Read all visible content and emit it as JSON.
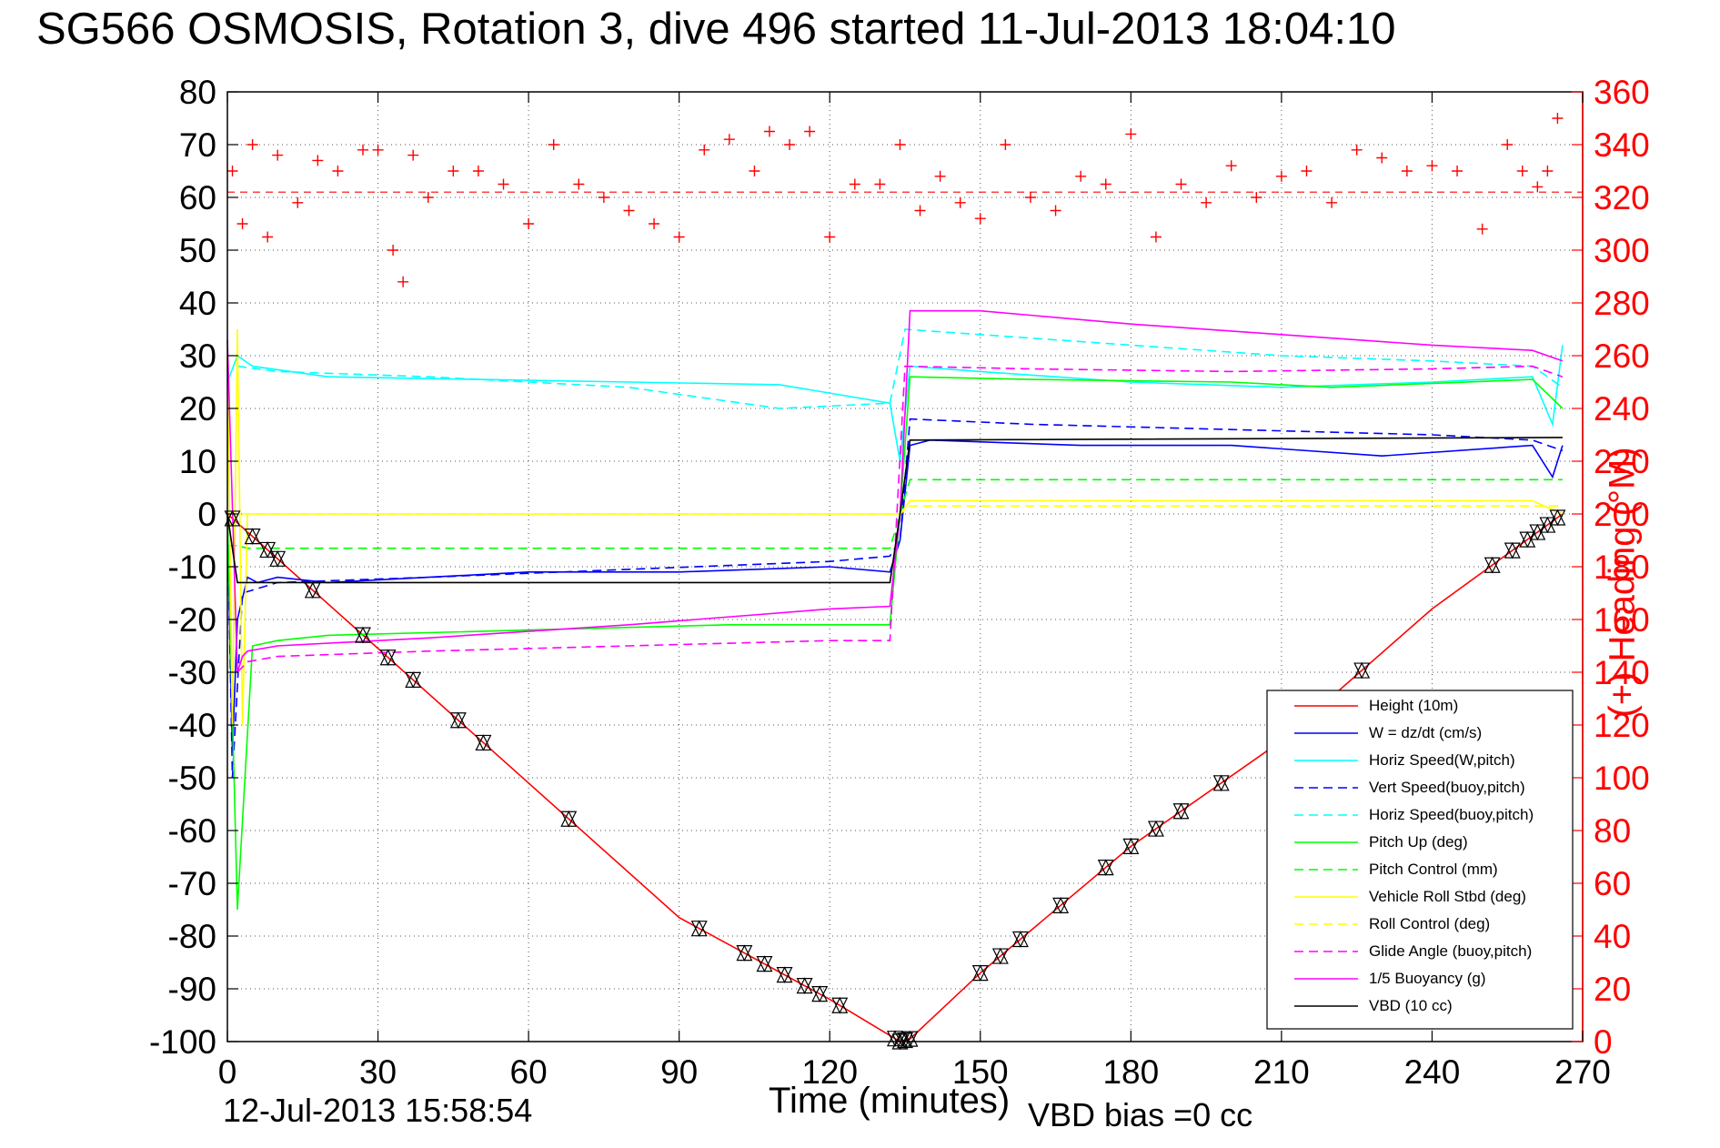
{
  "title": "SG566 OSMOSIS, Rotation 3, dive 496 started 11-Jul-2013 18:04:10",
  "footer": {
    "date": "12-Jul-2013 15:58:54",
    "vbd_bias": "VBD bias =0 cc"
  },
  "colors": {
    "height": "#ff0000",
    "w": "#0000ff",
    "horiz_w": "#00ffff",
    "vert_buoy": "#0000ff",
    "horiz_buoy": "#00ffff",
    "pitch": "#00ff00",
    "pitch_ctrl": "#00ff00",
    "roll": "#ffff00",
    "roll_ctrl": "#ffff00",
    "glide": "#ff00ff",
    "buoyancy": "#ff00ff",
    "vbd": "#000000",
    "heading": "#ff0000"
  },
  "chart_data": {
    "type": "line",
    "title": "SG566 OSMOSIS, Rotation 3, dive 496 started 11-Jul-2013 18:04:10",
    "xlabel": "Time (minutes)",
    "ylabel_right": "(+) Heading (°M)",
    "xlim": [
      0,
      270
    ],
    "ylim_left": [
      -100,
      80
    ],
    "ylim_right": [
      0,
      360
    ],
    "x_ticks": [
      0,
      30,
      60,
      90,
      120,
      150,
      180,
      210,
      240,
      270
    ],
    "y_ticks_left": [
      80,
      70,
      60,
      50,
      40,
      30,
      20,
      10,
      0,
      -10,
      -20,
      -30,
      -40,
      -50,
      -60,
      -70,
      -80,
      -90,
      -100
    ],
    "y_ticks_right": [
      360,
      340,
      320,
      300,
      280,
      260,
      240,
      220,
      200,
      180,
      160,
      140,
      120,
      100,
      80,
      60,
      40,
      20,
      0
    ],
    "grid": true,
    "legend_position": "bottom-right",
    "series": [
      {
        "name": "Height (10m)",
        "color_key": "height",
        "style": "solid",
        "x": [
          0,
          30,
          60,
          90,
          120,
          134,
          136,
          150,
          180,
          210,
          240,
          266
        ],
        "y": [
          0,
          -25.5,
          -51,
          -76.5,
          -92,
          -100,
          -99.5,
          -87,
          -63,
          -43,
          -18,
          0
        ]
      },
      {
        "name": "W = dz/dt (cm/s)",
        "color_key": "w",
        "style": "solid",
        "x": [
          0,
          1,
          2,
          4,
          6,
          10,
          20,
          40,
          60,
          90,
          120,
          132,
          134,
          136,
          140,
          170,
          200,
          230,
          260,
          264,
          266
        ],
        "y": [
          0,
          -45,
          -20,
          -12,
          -13,
          -12,
          -13,
          -12,
          -11,
          -11,
          -10,
          -11,
          -5,
          13,
          14,
          13,
          13,
          11,
          13,
          7,
          13
        ]
      },
      {
        "name": "Horiz Speed(W,pitch)",
        "color_key": "horiz_w",
        "style": "solid",
        "x": [
          0,
          2,
          5,
          20,
          50,
          80,
          110,
          132,
          134,
          136,
          150,
          180,
          210,
          240,
          260,
          264,
          266
        ],
        "y": [
          25,
          30,
          28,
          26,
          25.5,
          25,
          24.5,
          21,
          10,
          28,
          27,
          25,
          24,
          25,
          26,
          17,
          32
        ]
      },
      {
        "name": "Vert Speed(buoy,pitch)",
        "color_key": "vert_buoy",
        "style": "dashed",
        "x": [
          0,
          1,
          3,
          10,
          40,
          80,
          120,
          132,
          134,
          136,
          160,
          200,
          240,
          260,
          266
        ],
        "y": [
          0,
          -50,
          -15,
          -13,
          -12,
          -10.5,
          -9,
          -8,
          -5,
          18,
          17,
          16,
          15,
          14,
          12
        ]
      },
      {
        "name": "Horiz Speed(buoy,pitch)",
        "color_key": "horiz_buoy",
        "style": "dashed",
        "x": [
          2,
          10,
          40,
          80,
          110,
          132,
          135,
          150,
          180,
          210,
          240,
          260,
          266
        ],
        "y": [
          28,
          27,
          26,
          24,
          20,
          21,
          35,
          34,
          32,
          30,
          29,
          28,
          24
        ]
      },
      {
        "name": "Pitch Up (deg)",
        "color_key": "pitch",
        "style": "solid",
        "x": [
          0,
          2,
          5,
          10,
          20,
          60,
          100,
          132,
          134,
          136,
          160,
          200,
          220,
          260,
          266
        ],
        "y": [
          0,
          -75,
          -25,
          -24,
          -23,
          -22,
          -21,
          -21,
          0,
          26,
          25.5,
          25,
          24,
          25.5,
          20
        ]
      },
      {
        "name": "Pitch Control (mm)",
        "color_key": "pitch_ctrl",
        "style": "dashed",
        "x": [
          0,
          2,
          4,
          132,
          134,
          136,
          266
        ],
        "y": [
          -6,
          -6,
          -6.5,
          -6.5,
          0,
          6.5,
          6.5
        ]
      },
      {
        "name": "Vehicle Roll Stbd (deg)",
        "color_key": "roll",
        "style": "solid",
        "x": [
          0,
          1,
          2,
          3,
          4,
          130,
          134,
          136,
          200,
          260,
          266
        ],
        "y": [
          30,
          -40,
          35,
          -40,
          0,
          0,
          0,
          2.5,
          2.5,
          2.5,
          0
        ]
      },
      {
        "name": "Roll Control (deg)",
        "color_key": "roll_ctrl",
        "style": "dashed",
        "x": [
          0,
          134,
          136,
          266
        ],
        "y": [
          0,
          0,
          1.5,
          1.5
        ]
      },
      {
        "name": "Glide Angle (buoy,pitch)",
        "color_key": "glide",
        "style": "dashed",
        "x": [
          2,
          4,
          10,
          40,
          80,
          120,
          132,
          135,
          160,
          200,
          240,
          260,
          266
        ],
        "y": [
          -30,
          -28,
          -27,
          -26,
          -25,
          -24,
          -24,
          28,
          27.5,
          27,
          27.5,
          28,
          26
        ]
      },
      {
        "name": "1/5 Buoyancy (g)",
        "color_key": "buoyancy",
        "style": "solid",
        "x": [
          0,
          2,
          3,
          4,
          10,
          40,
          80,
          120,
          132,
          134,
          136,
          150,
          180,
          210,
          240,
          260,
          266
        ],
        "y": [
          33,
          -30,
          -27,
          -26,
          -25,
          -23.5,
          -21,
          -18,
          -17.5,
          0,
          38.5,
          38.5,
          36,
          34,
          32,
          31,
          29
        ]
      },
      {
        "name": "VBD (10 cc)",
        "color_key": "vbd",
        "style": "solid",
        "x": [
          0,
          2,
          4,
          132,
          134,
          136,
          266
        ],
        "y": [
          0,
          -13,
          -13,
          -13,
          0,
          14,
          14.5
        ]
      }
    ],
    "heading": {
      "name": "(+) Heading",
      "axis": "right",
      "marker": "+",
      "reference_line": 322,
      "x": [
        1,
        3,
        5,
        8,
        10,
        14,
        18,
        22,
        27,
        30,
        33,
        35,
        37,
        40,
        45,
        50,
        55,
        60,
        65,
        70,
        75,
        80,
        85,
        90,
        95,
        100,
        105,
        108,
        112,
        116,
        120,
        125,
        130,
        134,
        138,
        142,
        146,
        150,
        155,
        160,
        165,
        170,
        175,
        180,
        185,
        190,
        195,
        200,
        205,
        210,
        215,
        220,
        225,
        230,
        235,
        240,
        245,
        250,
        255,
        258,
        261,
        263,
        265
      ],
      "y": [
        330,
        310,
        340,
        305,
        336,
        318,
        334,
        330,
        338,
        338,
        300,
        288,
        336,
        320,
        330,
        330,
        325,
        310,
        340,
        325,
        320,
        315,
        310,
        305,
        338,
        342,
        330,
        345,
        340,
        345,
        305,
        325,
        325,
        340,
        315,
        328,
        318,
        312,
        340,
        320,
        315,
        328,
        325,
        344,
        305,
        325,
        318,
        332,
        320,
        328,
        330,
        318,
        338,
        335,
        330,
        332,
        330,
        308,
        340,
        330,
        324,
        330,
        350
      ]
    }
  }
}
